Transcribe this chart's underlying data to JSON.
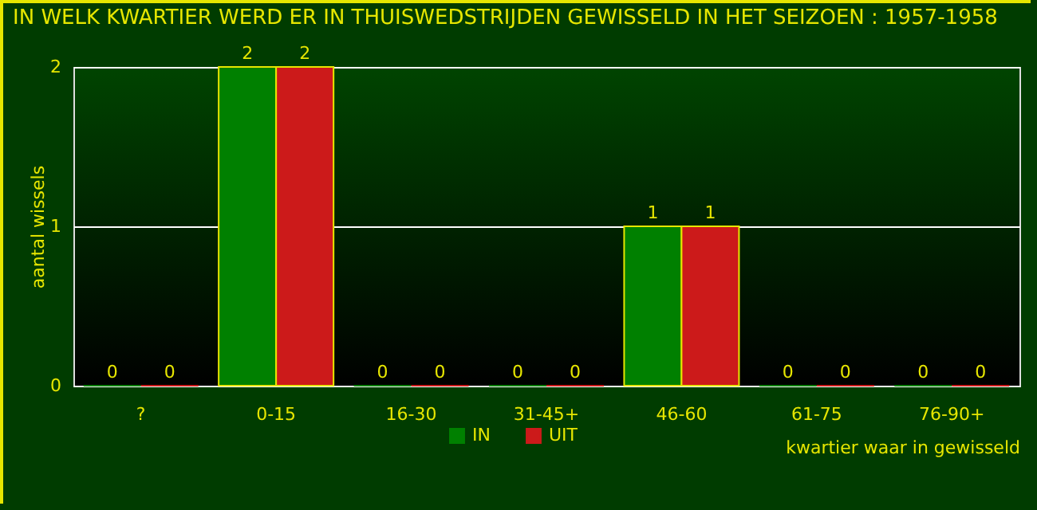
{
  "chart_data": {
    "type": "bar",
    "title": "IN WELK KWARTIER WERD ER IN THUISWEDSTRIJDEN GEWISSELD IN HET SEIZOEN : 1957-1958",
    "xlabel": "kwartier waar in gewisseld",
    "ylabel": "aantal wissels",
    "categories": [
      "?",
      "0-15",
      "16-30",
      "31-45+",
      "46-60",
      "61-75",
      "76-90+"
    ],
    "series": [
      {
        "name": "IN",
        "color": "#008000",
        "values": [
          0,
          2,
          0,
          0,
          1,
          0,
          0
        ]
      },
      {
        "name": "UIT",
        "color": "#cc1a1a",
        "values": [
          0,
          2,
          0,
          0,
          1,
          0,
          0
        ]
      }
    ],
    "ylim": [
      0,
      2
    ],
    "yticks": [
      0,
      1,
      2
    ],
    "grid": "y",
    "legend": "bottom",
    "data_labels": true
  }
}
